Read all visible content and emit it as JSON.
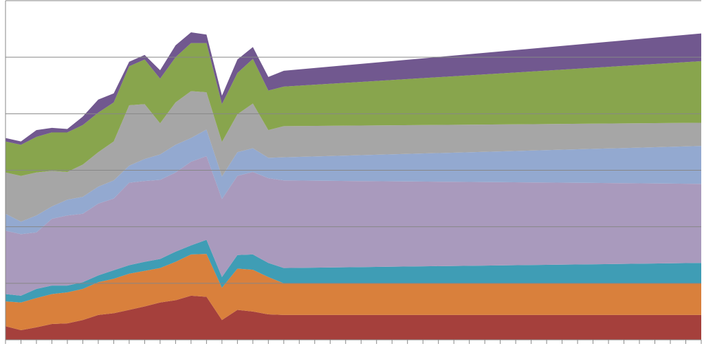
{
  "chart_data": {
    "type": "stacked-area",
    "x": [
      0,
      1,
      2,
      3,
      4,
      5,
      6,
      7,
      8,
      9,
      10,
      11,
      12,
      13,
      14,
      15,
      16,
      17,
      18,
      45
    ],
    "xlim": [
      0,
      45
    ],
    "xticks": [
      0,
      1,
      2,
      3,
      4,
      5,
      6,
      7,
      8,
      9,
      10,
      11,
      12,
      13,
      14,
      15,
      16,
      17,
      18,
      19,
      20,
      21,
      22,
      23,
      24,
      25,
      26,
      27,
      28,
      29,
      30,
      31,
      32,
      33,
      34,
      35,
      36,
      37,
      38,
      39,
      40,
      41,
      42,
      43,
      44,
      45
    ],
    "ylim": [
      0,
      6
    ],
    "yticks": [
      0,
      1,
      2,
      3,
      4,
      5,
      6
    ],
    "grid": true,
    "series": [
      {
        "color": "#a5403c",
        "values": [
          0.24,
          0.17,
          0.22,
          0.28,
          0.29,
          0.35,
          0.44,
          0.47,
          0.53,
          0.59,
          0.66,
          0.7,
          0.78,
          0.76,
          0.35,
          0.53,
          0.5,
          0.45,
          0.44,
          0.44
        ]
      },
      {
        "color": "#d9803c",
        "values": [
          0.44,
          0.49,
          0.52,
          0.53,
          0.55,
          0.55,
          0.58,
          0.61,
          0.64,
          0.63,
          0.61,
          0.68,
          0.73,
          0.76,
          0.57,
          0.73,
          0.74,
          0.66,
          0.56,
          0.56
        ]
      },
      {
        "color": "#3f9db5",
        "values": [
          0.13,
          0.12,
          0.16,
          0.15,
          0.12,
          0.12,
          0.12,
          0.15,
          0.15,
          0.16,
          0.16,
          0.18,
          0.16,
          0.25,
          0.19,
          0.24,
          0.27,
          0.25,
          0.27,
          0.36
        ]
      },
      {
        "color": "#a99abd",
        "values": [
          1.12,
          1.09,
          1.0,
          1.18,
          1.24,
          1.21,
          1.27,
          1.27,
          1.46,
          1.43,
          1.4,
          1.4,
          1.48,
          1.48,
          1.38,
          1.4,
          1.46,
          1.5,
          1.55,
          1.4
        ]
      },
      {
        "color": "#93a9d0",
        "values": [
          0.3,
          0.22,
          0.3,
          0.22,
          0.28,
          0.3,
          0.3,
          0.32,
          0.3,
          0.39,
          0.45,
          0.49,
          0.42,
          0.47,
          0.4,
          0.42,
          0.42,
          0.36,
          0.41,
          0.67
        ]
      },
      {
        "color": "#a6a6a6",
        "values": [
          0.73,
          0.81,
          0.76,
          0.63,
          0.49,
          0.57,
          0.61,
          0.69,
          1.07,
          0.97,
          0.55,
          0.75,
          0.83,
          0.66,
          0.61,
          0.67,
          0.79,
          0.49,
          0.55,
          0.41
        ]
      },
      {
        "color": "#88a54d",
        "values": [
          0.55,
          0.55,
          0.63,
          0.68,
          0.7,
          0.7,
          0.7,
          0.69,
          0.69,
          0.79,
          0.79,
          0.8,
          0.85,
          0.87,
          0.67,
          0.73,
          0.79,
          0.7,
          0.7,
          1.09
        ]
      },
      {
        "color": "#71588f",
        "values": [
          0.06,
          0.06,
          0.12,
          0.08,
          0.06,
          0.15,
          0.23,
          0.16,
          0.08,
          0.08,
          0.15,
          0.21,
          0.19,
          0.15,
          0.15,
          0.24,
          0.21,
          0.24,
          0.28,
          0.49
        ]
      }
    ]
  }
}
